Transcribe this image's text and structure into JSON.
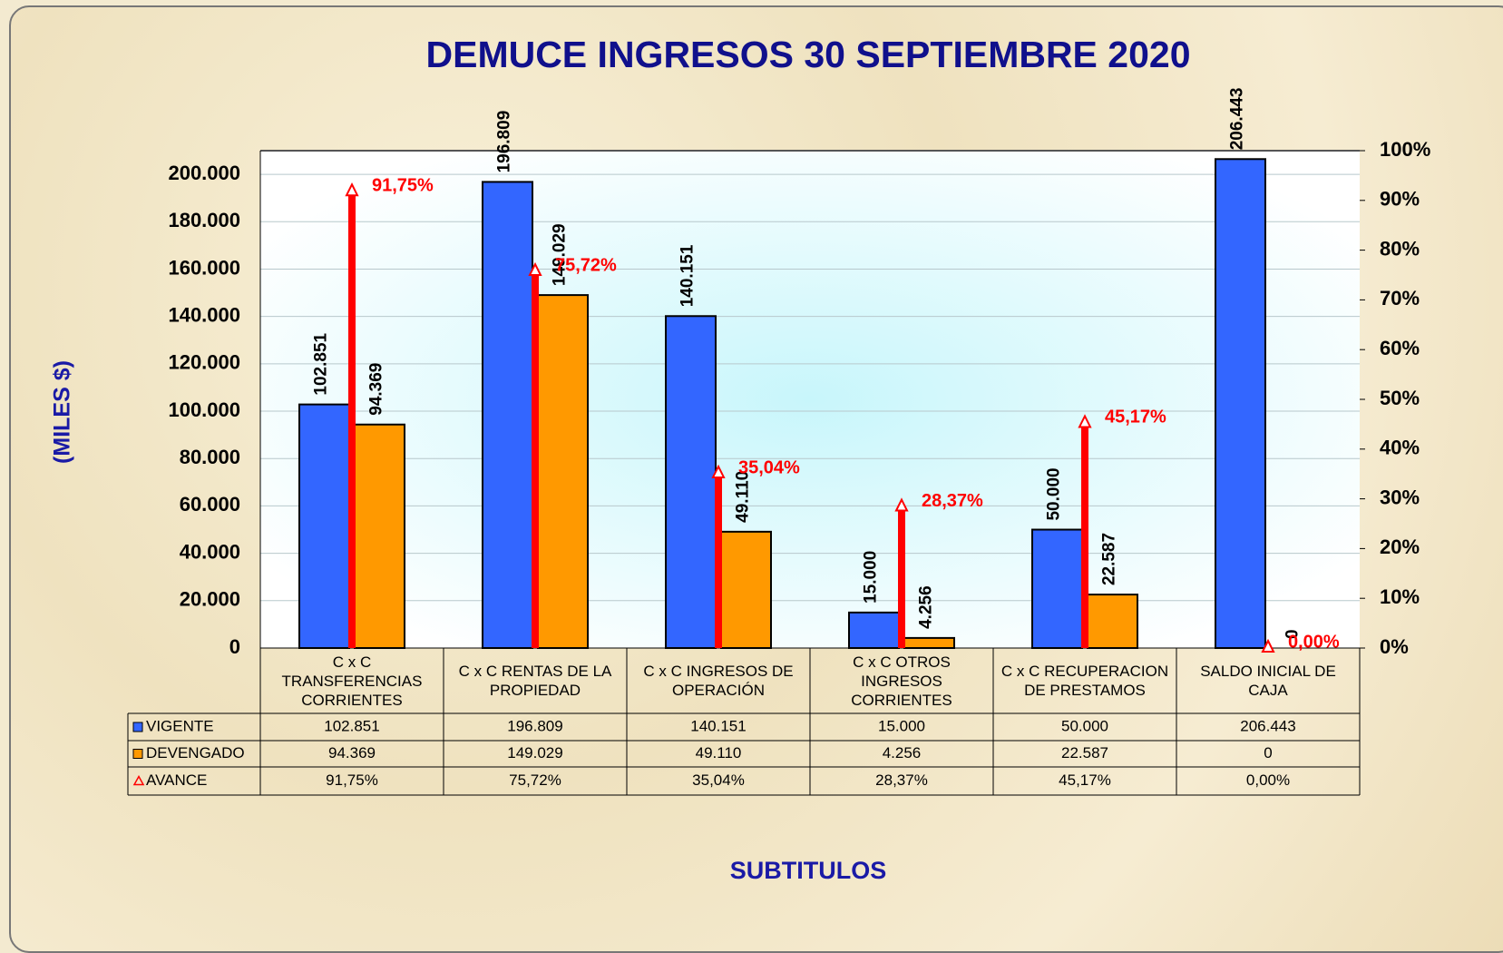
{
  "chart_data": {
    "type": "bar",
    "title": "DEMUCE INGRESOS 30  SEPTIEMBRE 2020",
    "y_label": "(MILES $)",
    "x_label": "SUBTITULOS",
    "categories": [
      "C x C TRANSFERENCIAS CORRIENTES",
      "C x C RENTAS DE LA PROPIEDAD",
      "C x C INGRESOS DE OPERACIÓN",
      "C x C OTROS INGRESOS CORRIENTES",
      "C x C RECUPERACION DE PRESTAMOS",
      "SALDO INICIAL DE CAJA"
    ],
    "series": [
      {
        "name": "VIGENTE",
        "color": "#3366ff",
        "values": [
          102851,
          196809,
          140151,
          15000,
          50000,
          206443
        ],
        "value_labels": [
          "102.851",
          "196.809",
          "140.151",
          "15.000",
          "50.000",
          "206.443"
        ]
      },
      {
        "name": "DEVENGADO",
        "color": "#ff9900",
        "values": [
          94369,
          149029,
          49110,
          4256,
          22587,
          0
        ],
        "value_labels": [
          "94.369",
          "149.029",
          "49.110",
          "4.256",
          "22.587",
          "0"
        ]
      },
      {
        "name": "AVANCE",
        "color": "#ff0000",
        "axis": "y2",
        "values": [
          91.75,
          75.72,
          35.04,
          28.37,
          45.17,
          0
        ],
        "value_labels": [
          "91,75%",
          "75,72%",
          "35,04%",
          "28,37%",
          "45,17%",
          "0,00%"
        ]
      }
    ],
    "ylim": [
      0,
      210000
    ],
    "yticks": [
      {
        "value": 0,
        "label": "0"
      },
      {
        "value": 20000,
        "label": "20.000"
      },
      {
        "value": 40000,
        "label": "40.000"
      },
      {
        "value": 60000,
        "label": "60.000"
      },
      {
        "value": 80000,
        "label": "80.000"
      },
      {
        "value": 100000,
        "label": "100.000"
      },
      {
        "value": 120000,
        "label": "120.000"
      },
      {
        "value": 140000,
        "label": "140.000"
      },
      {
        "value": 160000,
        "label": "160.000"
      },
      {
        "value": 180000,
        "label": "180.000"
      },
      {
        "value": 200000,
        "label": "200.000"
      }
    ],
    "y2lim": [
      0,
      100
    ],
    "y2ticks": [
      {
        "value": 0,
        "label": "0%"
      },
      {
        "value": 10,
        "label": "10%"
      },
      {
        "value": 20,
        "label": "20%"
      },
      {
        "value": 30,
        "label": "30%"
      },
      {
        "value": 40,
        "label": "40%"
      },
      {
        "value": 50,
        "label": "50%"
      },
      {
        "value": 60,
        "label": "60%"
      },
      {
        "value": 70,
        "label": "70%"
      },
      {
        "value": 80,
        "label": "80%"
      },
      {
        "value": 90,
        "label": "90%"
      },
      {
        "value": 100,
        "label": "100%"
      }
    ],
    "grid": true
  }
}
